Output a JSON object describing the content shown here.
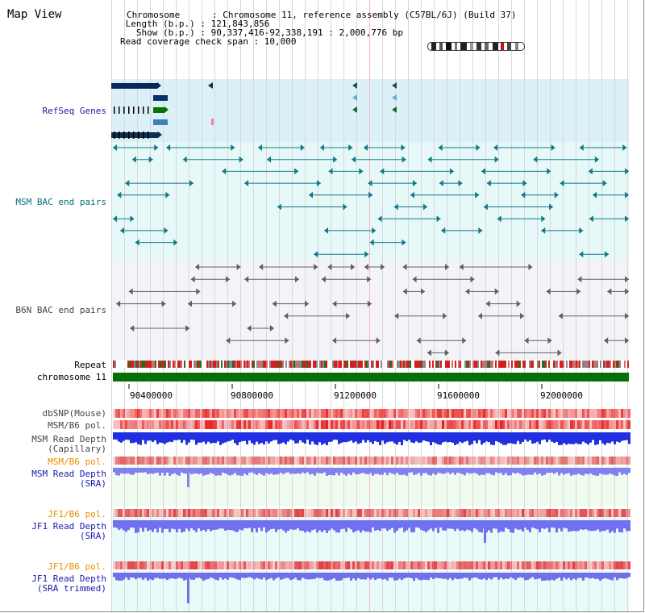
{
  "view": {
    "title": "Map View",
    "header_lines": [
      "Chromosome      : Chromosome 11, reference assembly (C57BL/6J) (Build 37)",
      " Length (b.p.) : 121,843,856",
      "   Show (b.p.) : 90,337,416-92,338,191 : 2,000,776 bp",
      "Read coverage check span : 10,000"
    ]
  },
  "tracks": {
    "refseq": "RefSeq Genes",
    "msm_bac": "MSM BAC end pairs",
    "b6n_bac": "B6N BAC end pairs",
    "repeat": "Repeat",
    "chromosome": "chromosome 11",
    "dbsnp": "dbSNP(Mouse)",
    "msm_pol": "MSM/B6 pol.",
    "msm_depth_cap_1": "MSM Read Depth",
    "msm_depth_cap_2": "(Capillary)",
    "msm_pol2": "MSM/B6 pol.",
    "msm_depth_sra_1": "MSM Read Depth",
    "msm_depth_sra_2": "(SRA)",
    "jf1_pol": "JF1/B6 pol.",
    "jf1_depth_sra_1": "JF1 Read Depth",
    "jf1_depth_sra_2": "(SRA)",
    "jf1_pol2": "JF1/B6 pol.",
    "jf1_depth_trim_1": "JF1 Read Depth",
    "jf1_depth_trim_2": "(SRA trimmed)"
  },
  "ruler": {
    "ticks": [
      "90400000",
      "90800000",
      "91200000",
      "91600000",
      "92000000"
    ]
  },
  "colors": {
    "refseq_bg": "#dcf0f8",
    "msm_bg": "#e6f8f8",
    "b6n_bg": "#f4f4f8",
    "cov_bg": "#f0fbf0",
    "label_blue": "#1a1aa8",
    "label_teal": "#007080",
    "label_gray": "#444444",
    "label_orange": "#e89000",
    "chrom_green": "#086e08"
  }
}
